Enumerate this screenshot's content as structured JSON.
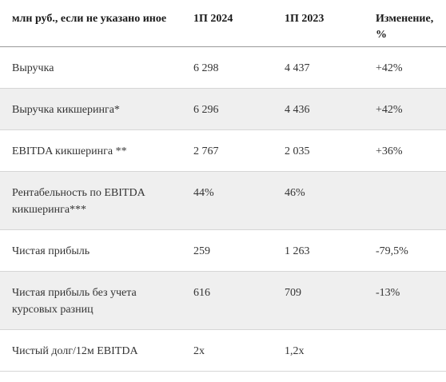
{
  "table": {
    "headers": [
      "млн руб., если не указано иное",
      "1П 2024",
      "1П 2023",
      "Изменение, %"
    ],
    "rows": [
      {
        "label": "Выручка",
        "h1_2024": "6 298",
        "h1_2023": "4 437",
        "change": "+42%"
      },
      {
        "label": "Выручка кикшеринга*",
        "h1_2024": "6 296",
        "h1_2023": "4 436",
        "change": "+42%"
      },
      {
        "label": "EBITDA кикшеринга **",
        "h1_2024": "2 767",
        "h1_2023": "2 035",
        "change": "+36%"
      },
      {
        "label": "Рентабельность по EBITDA кикшеринга***",
        "h1_2024": "44%",
        "h1_2023": "46%",
        "change": ""
      },
      {
        "label": "Чистая прибыль",
        "h1_2024": "259",
        "h1_2023": "1 263",
        "change": "-79,5%"
      },
      {
        "label": "Чистая прибыль без учета курсовых разниц",
        "h1_2024": "616",
        "h1_2023": "709",
        "change": "-13%"
      },
      {
        "label": "Чистый долг/12м EBITDA",
        "h1_2024": "2x",
        "h1_2023": "1,2x",
        "change": ""
      }
    ]
  }
}
